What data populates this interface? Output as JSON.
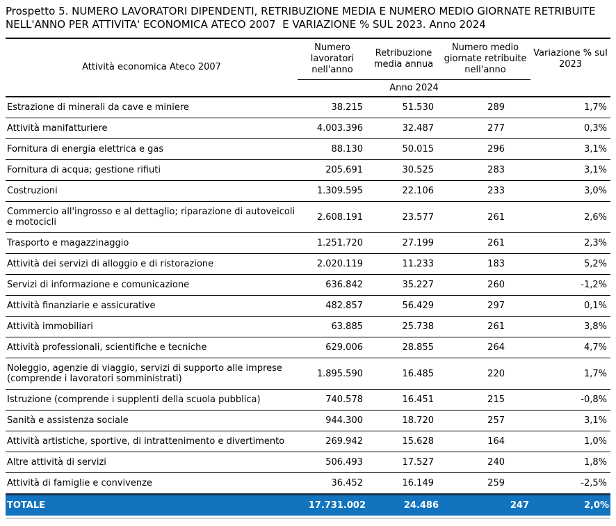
{
  "title": "Prospetto 5. NUMERO LAVORATORI DIPENDENTI, RETRIBUZIONE MEDIA E NUMERO MEDIO GIORNATE RETRIBUITE NELL'ANNO PER ATTIVITA' ECONOMICA ATECO 2007  E VARIAZIONE % SUL 2023. Anno 2024",
  "table": {
    "column_headers": {
      "activity": "Attività economica Ateco 2007",
      "workers": "Numero lavoratori nell'anno",
      "pay": "Retribuzione media annua",
      "days": "Numero medio giornate  retribuite nell'anno",
      "variation": "Variazione % sul 2023"
    },
    "subheader": "Anno 2024",
    "rows": [
      {
        "activity": "Estrazione di minerali da cave e miniere",
        "workers": "38.215",
        "pay": "51.530",
        "days": "289",
        "variation": "1,7%"
      },
      {
        "activity": "Attività manifatturiere",
        "workers": "4.003.396",
        "pay": "32.487",
        "days": "277",
        "variation": "0,3%"
      },
      {
        "activity": "Fornitura di energia elettrica e gas",
        "workers": "88.130",
        "pay": "50.015",
        "days": "296",
        "variation": "3,1%"
      },
      {
        "activity": "Fornitura di acqua; gestione rifiuti",
        "workers": "205.691",
        "pay": "30.525",
        "days": "283",
        "variation": "3,1%"
      },
      {
        "activity": "Costruzioni",
        "workers": "1.309.595",
        "pay": "22.106",
        "days": "233",
        "variation": "3,0%"
      },
      {
        "activity": "Commercio all'ingrosso e al dettaglio; riparazione di autoveicoli e motocicli",
        "workers": "2.608.191",
        "pay": "23.577",
        "days": "261",
        "variation": "2,6%"
      },
      {
        "activity": "Trasporto e magazzinaggio",
        "workers": "1.251.720",
        "pay": "27.199",
        "days": "261",
        "variation": "2,3%"
      },
      {
        "activity": "Attività dei servizi di alloggio e di ristorazione",
        "workers": "2.020.119",
        "pay": "11.233",
        "days": "183",
        "variation": "5,2%"
      },
      {
        "activity": "Servizi di informazione e comunicazione",
        "workers": "636.842",
        "pay": "35.227",
        "days": "260",
        "variation": "-1,2%"
      },
      {
        "activity": "Attività finanziarie e assicurative",
        "workers": "482.857",
        "pay": "56.429",
        "days": "297",
        "variation": "0,1%"
      },
      {
        "activity": "Attività immobiliari",
        "workers": "63.885",
        "pay": "25.738",
        "days": "261",
        "variation": "3,8%"
      },
      {
        "activity": "Attività professionali, scientifiche e tecniche",
        "workers": "629.006",
        "pay": "28.855",
        "days": "264",
        "variation": "4,7%"
      },
      {
        "activity": "Noleggio, agenzie di viaggio, servizi di supporto alle imprese (comprende i lavoratori somministrati)",
        "workers": "1.895.590",
        "pay": "16.485",
        "days": "220",
        "variation": "1,7%"
      },
      {
        "activity": "Istruzione (comprende i supplenti della scuola pubblica)",
        "workers": "740.578",
        "pay": "16.451",
        "days": "215",
        "variation": "-0,8%"
      },
      {
        "activity": "Sanità e assistenza sociale",
        "workers": "944.300",
        "pay": "18.720",
        "days": "257",
        "variation": "3,1%"
      },
      {
        "activity": "Attività artistiche, sportive, di intrattenimento e divertimento",
        "workers": "269.942",
        "pay": "15.628",
        "days": "164",
        "variation": "1,0%"
      },
      {
        "activity": "Altre attività di servizi",
        "workers": "506.493",
        "pay": "17.527",
        "days": "240",
        "variation": "1,8%"
      },
      {
        "activity": "Attività di famiglie e convivenze",
        "workers": "36.452",
        "pay": "16.149",
        "days": "259",
        "variation": "-2,5%"
      }
    ],
    "total": {
      "activity": "TOTALE",
      "workers": "17.731.002",
      "pay": "24.486",
      "days": "247",
      "variation": "2,0%"
    }
  },
  "colors": {
    "total_row_bg": "#1273BE",
    "total_row_text": "#FFFFFF",
    "total_row_top_border": "#1B3149",
    "row_line": "#000000",
    "bottom_line": "#C9D2DB"
  }
}
